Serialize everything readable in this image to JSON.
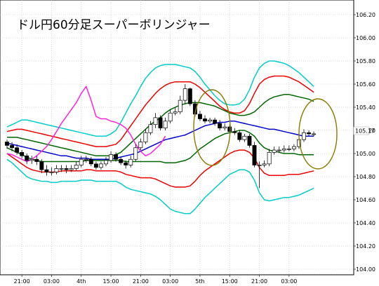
{
  "chart_data": {
    "type": "line",
    "title": "ドル円60分足スーパーボリンジャー",
    "xlabel": "",
    "ylabel": "",
    "ylim": [
      104.0,
      106.2
    ],
    "y_ticks": [
      "106.20",
      "106.00",
      "105.80",
      "105.60",
      "105.40",
      "105.20",
      "105.00",
      "104.80",
      "104.60",
      "104.40",
      "104.20",
      "104.00"
    ],
    "x_ticks": [
      {
        "label": "21:00",
        "index": 3
      },
      {
        "label": "03:00",
        "index": 9
      },
      {
        "label": "4th",
        "index": 15
      },
      {
        "label": "15:00",
        "index": 21
      },
      {
        "label": "21:00",
        "index": 27
      },
      {
        "label": "03:00",
        "index": 33
      },
      {
        "label": "5th",
        "index": 39
      },
      {
        "label": "15:00",
        "index": 45
      },
      {
        "label": "21:00",
        "index": 51
      },
      {
        "label": "03:00",
        "index": 57
      }
    ],
    "current_price": "105.17",
    "grid": true,
    "bar_count": 63,
    "candles": {
      "open": [
        105.1,
        105.07,
        105.05,
        105.01,
        104.98,
        104.94,
        104.95,
        104.93,
        104.86,
        104.84,
        104.84,
        104.87,
        104.87,
        104.86,
        104.87,
        104.9,
        104.95,
        104.95,
        104.91,
        104.88,
        104.91,
        104.94,
        104.99,
        104.95,
        104.92,
        104.9,
        104.95,
        105.05,
        105.1,
        105.18,
        105.25,
        105.31,
        105.22,
        105.28,
        105.35,
        105.36,
        105.46,
        105.56,
        105.43,
        105.34,
        105.3,
        105.28,
        105.29,
        105.26,
        105.22,
        105.23,
        105.19,
        105.18,
        105.12,
        105.15,
        105.07,
        104.9,
        104.9,
        104.91,
        105.01,
        105.03,
        105.03,
        105.04,
        105.04,
        105.06,
        105.12,
        105.18,
        105.17
      ],
      "close": [
        105.07,
        105.05,
        105.01,
        104.98,
        104.94,
        104.95,
        104.93,
        104.86,
        104.84,
        104.84,
        104.87,
        104.87,
        104.86,
        104.87,
        104.9,
        104.95,
        104.95,
        104.91,
        104.88,
        104.91,
        104.94,
        104.99,
        104.95,
        104.92,
        104.9,
        104.95,
        105.05,
        105.1,
        105.18,
        105.25,
        105.31,
        105.22,
        105.28,
        105.35,
        105.36,
        105.46,
        105.56,
        105.43,
        105.34,
        105.3,
        105.28,
        105.29,
        105.26,
        105.22,
        105.23,
        105.19,
        105.18,
        105.12,
        105.15,
        105.07,
        104.9,
        104.9,
        104.91,
        105.01,
        105.03,
        105.03,
        105.04,
        105.04,
        105.06,
        105.12,
        105.18,
        105.17,
        105.17
      ],
      "high": [
        105.12,
        105.1,
        105.08,
        105.03,
        105.0,
        104.98,
        104.98,
        104.95,
        104.9,
        104.88,
        104.9,
        104.9,
        104.9,
        104.9,
        104.93,
        104.98,
        104.98,
        104.97,
        104.93,
        104.93,
        104.97,
        105.02,
        105.01,
        104.97,
        104.94,
        104.98,
        105.08,
        105.13,
        105.21,
        105.28,
        105.35,
        105.33,
        105.31,
        105.38,
        105.4,
        105.5,
        105.6,
        105.57,
        105.46,
        105.37,
        105.33,
        105.31,
        105.31,
        105.29,
        105.26,
        105.25,
        105.22,
        105.2,
        105.17,
        105.17,
        105.1,
        104.93,
        104.94,
        105.04,
        105.06,
        105.06,
        105.07,
        105.07,
        105.08,
        105.15,
        105.21,
        105.2,
        105.19
      ],
      "low": [
        105.04,
        105.02,
        104.99,
        104.96,
        104.91,
        104.91,
        104.9,
        104.83,
        104.81,
        104.81,
        104.82,
        104.84,
        104.83,
        104.84,
        104.85,
        104.88,
        104.92,
        104.89,
        104.86,
        104.86,
        104.89,
        104.92,
        104.93,
        104.9,
        104.87,
        104.88,
        104.93,
        105.03,
        105.08,
        105.16,
        105.22,
        105.2,
        105.2,
        105.26,
        105.33,
        105.34,
        105.43,
        105.41,
        105.32,
        105.28,
        105.26,
        105.26,
        105.24,
        105.2,
        105.2,
        105.17,
        105.16,
        105.1,
        105.1,
        105.05,
        104.88,
        104.7,
        104.88,
        104.89,
        104.99,
        105.01,
        105.01,
        105.02,
        105.02,
        105.04,
        105.1,
        105.15,
        105.15
      ]
    },
    "series": [
      {
        "color": "#00cccc",
        "values": [
          104.95,
          104.92,
          104.88,
          104.84,
          104.8,
          104.78,
          104.77,
          104.76,
          104.76,
          104.75,
          104.75,
          104.76,
          104.76,
          104.76,
          104.76,
          104.77,
          104.77,
          104.77,
          104.76,
          104.76,
          104.76,
          104.76,
          104.76,
          104.74,
          104.71,
          104.69,
          104.68,
          104.67,
          104.66,
          104.65,
          104.63,
          104.6,
          104.56,
          104.52,
          104.5,
          104.49,
          104.48,
          104.48,
          104.52,
          104.57,
          104.62,
          104.66,
          104.7,
          104.74,
          104.78,
          104.82,
          104.84,
          104.86,
          104.86,
          104.84,
          104.77,
          104.66,
          104.6,
          104.59,
          104.6,
          104.61,
          104.62,
          104.62,
          104.63,
          104.64,
          104.66,
          104.68,
          104.7
        ]
      },
      {
        "color": "#ee0000",
        "values": [
          105.0,
          104.97,
          104.94,
          104.91,
          104.88,
          104.86,
          104.85,
          104.84,
          104.84,
          104.84,
          104.84,
          104.85,
          104.85,
          104.85,
          104.85,
          104.85,
          104.86,
          104.86,
          104.85,
          104.85,
          104.85,
          104.85,
          104.85,
          104.84,
          104.82,
          104.81,
          104.8,
          104.79,
          104.79,
          104.79,
          104.78,
          104.76,
          104.74,
          104.72,
          104.71,
          104.71,
          104.71,
          104.72,
          104.76,
          104.81,
          104.85,
          104.88,
          104.91,
          104.94,
          104.97,
          105.0,
          105.02,
          105.03,
          105.03,
          105.01,
          104.96,
          104.88,
          104.83,
          104.81,
          104.81,
          104.81,
          104.81,
          104.82,
          104.82,
          104.82,
          104.83,
          104.84,
          104.85
        ]
      },
      {
        "color": "#006600",
        "values": [
          105.05,
          105.03,
          105.01,
          104.99,
          104.97,
          104.95,
          104.94,
          104.93,
          104.93,
          104.93,
          104.93,
          104.93,
          104.93,
          104.93,
          104.93,
          104.93,
          104.94,
          104.94,
          104.94,
          104.94,
          104.94,
          104.94,
          104.94,
          104.94,
          104.93,
          104.93,
          104.93,
          104.93,
          104.93,
          104.93,
          104.93,
          104.93,
          104.92,
          104.92,
          104.92,
          104.93,
          104.94,
          104.96,
          105.0,
          105.04,
          105.07,
          105.1,
          105.13,
          105.15,
          105.17,
          105.18,
          105.19,
          105.2,
          105.2,
          105.18,
          105.15,
          105.09,
          105.05,
          105.03,
          105.02,
          105.01,
          105.0,
          105.0,
          105.0,
          104.99,
          104.99,
          104.99,
          104.99
        ]
      },
      {
        "color": "#0000cc",
        "values": [
          105.09,
          105.08,
          105.07,
          105.06,
          105.05,
          105.04,
          105.03,
          105.02,
          105.01,
          105.0,
          104.99,
          104.98,
          104.98,
          104.97,
          104.96,
          104.96,
          104.96,
          104.95,
          104.95,
          104.95,
          104.95,
          104.95,
          104.96,
          104.97,
          104.98,
          104.99,
          105.0,
          105.02,
          105.04,
          105.06,
          105.08,
          105.1,
          105.12,
          105.13,
          105.14,
          105.15,
          105.16,
          105.18,
          105.2,
          105.22,
          105.24,
          105.25,
          105.26,
          105.27,
          105.27,
          105.28,
          105.28,
          105.27,
          105.26,
          105.25,
          105.24,
          105.23,
          105.22,
          105.21,
          105.21,
          105.2,
          105.19,
          105.18,
          105.17,
          105.16,
          105.15,
          105.15,
          105.15
        ]
      },
      {
        "color": "#006600",
        "values": [
          105.14,
          105.14,
          105.14,
          105.13,
          105.12,
          105.11,
          105.1,
          105.09,
          105.08,
          105.07,
          105.06,
          105.05,
          105.04,
          105.03,
          105.02,
          105.01,
          105.0,
          104.99,
          104.98,
          104.98,
          104.98,
          104.98,
          104.99,
          105.01,
          105.05,
          105.09,
          105.13,
          105.17,
          105.21,
          105.25,
          105.28,
          105.31,
          105.35,
          105.38,
          105.4,
          105.42,
          105.43,
          105.44,
          105.44,
          105.44,
          105.43,
          105.42,
          105.41,
          105.39,
          105.37,
          105.35,
          105.34,
          105.33,
          105.33,
          105.34,
          105.36,
          105.4,
          105.44,
          105.47,
          105.49,
          105.5,
          105.51,
          105.51,
          105.5,
          105.49,
          105.48,
          105.47,
          105.45
        ]
      },
      {
        "color": "#ee0000",
        "values": [
          105.19,
          105.2,
          105.21,
          105.21,
          105.2,
          105.19,
          105.18,
          105.17,
          105.16,
          105.15,
          105.14,
          105.13,
          105.12,
          105.11,
          105.1,
          105.09,
          105.08,
          105.07,
          105.06,
          105.06,
          105.06,
          105.07,
          105.08,
          105.12,
          105.18,
          105.24,
          105.3,
          105.36,
          105.42,
          105.47,
          105.52,
          105.56,
          105.59,
          105.61,
          105.62,
          105.62,
          105.62,
          105.62,
          105.6,
          105.57,
          105.53,
          105.49,
          105.45,
          105.41,
          105.38,
          105.36,
          105.35,
          105.35,
          105.37,
          105.43,
          105.52,
          105.6,
          105.64,
          105.66,
          105.67,
          105.67,
          105.67,
          105.66,
          105.64,
          105.62,
          105.59,
          105.56,
          105.53
        ]
      },
      {
        "color": "#00cccc",
        "values": [
          105.23,
          105.25,
          105.27,
          105.29,
          105.29,
          105.28,
          105.27,
          105.26,
          105.25,
          105.24,
          105.23,
          105.22,
          105.21,
          105.2,
          105.19,
          105.18,
          105.17,
          105.16,
          105.15,
          105.15,
          105.15,
          105.17,
          105.2,
          105.27,
          105.35,
          105.43,
          105.5,
          105.58,
          105.65,
          105.7,
          105.74,
          105.76,
          105.77,
          105.77,
          105.77,
          105.76,
          105.75,
          105.74,
          105.71,
          105.66,
          105.6,
          105.55,
          105.5,
          105.46,
          105.43,
          105.42,
          105.42,
          105.43,
          105.47,
          105.55,
          105.66,
          105.74,
          105.78,
          105.8,
          105.8,
          105.79,
          105.78,
          105.76,
          105.73,
          105.7,
          105.66,
          105.62,
          105.58
        ]
      },
      {
        "color": "#ff22dd",
        "values": [
          105.0,
          104.99,
          104.97,
          104.95,
          104.93,
          104.95,
          104.98,
          105.02,
          105.06,
          105.12,
          105.19,
          105.26,
          105.32,
          105.38,
          105.44,
          105.52,
          105.58,
          105.46,
          105.32,
          105.3,
          105.3,
          105.28,
          105.27,
          105.25,
          105.22,
          105.16,
          105.08,
          105.02,
          104.98,
          105.0,
          105.04,
          105.08,
          105.15
        ]
      }
    ],
    "annotations": [
      "ellipse",
      "ellipse"
    ]
  }
}
